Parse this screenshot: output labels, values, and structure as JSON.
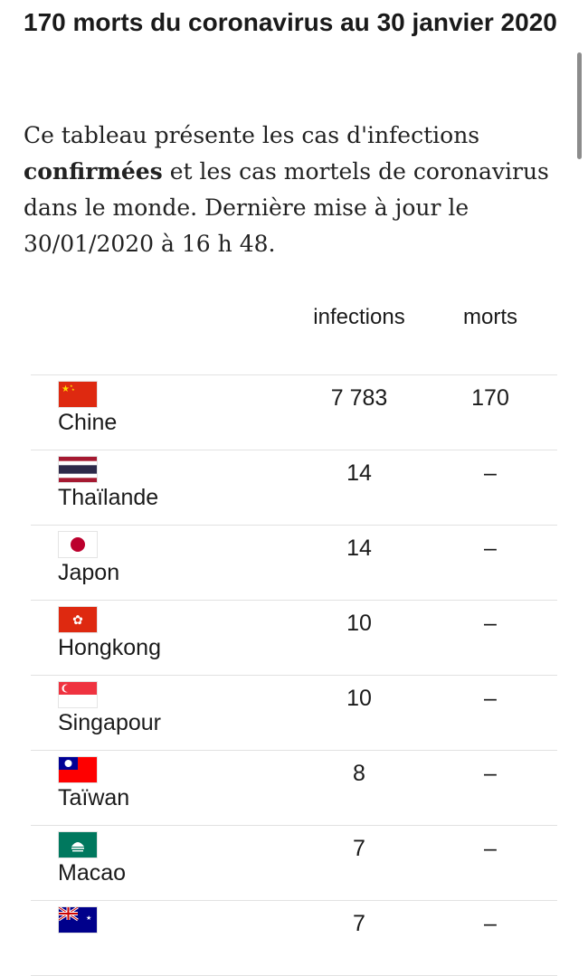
{
  "article": {
    "title": "170 morts du coronavirus au 30 janvier 2020",
    "intro_part1": "Ce tableau présente les cas d'infections ",
    "intro_bold": "confirmées",
    "intro_part2": " et les cas mortels de coronavirus dans le monde. Dernière mise à jour le 30/01/2020 à 16 h 48."
  },
  "table": {
    "headers": {
      "infections": "infections",
      "morts": "morts"
    },
    "rows": [
      {
        "country": "Chine",
        "flag": "china-flag-icon",
        "infections": "7 783",
        "morts": "170"
      },
      {
        "country": "Thaïlande",
        "flag": "thailand-flag-icon",
        "infections": "14",
        "morts": "–"
      },
      {
        "country": "Japon",
        "flag": "japan-flag-icon",
        "infections": "14",
        "morts": "–"
      },
      {
        "country": "Hongkong",
        "flag": "hongkong-flag-icon",
        "infections": "10",
        "morts": "–"
      },
      {
        "country": "Singapour",
        "flag": "singapore-flag-icon",
        "infections": "10",
        "morts": "–"
      },
      {
        "country": "Taïwan",
        "flag": "taiwan-flag-icon",
        "infections": "8",
        "morts": "–"
      },
      {
        "country": "Macao",
        "flag": "macao-flag-icon",
        "infections": "7",
        "morts": "–"
      },
      {
        "country": "",
        "flag": "australia-flag-icon",
        "infections": "7",
        "morts": "–"
      }
    ]
  },
  "colors": {
    "text": "#1a1a1a",
    "divider": "#e2e2e2",
    "red": "#de2910",
    "yellow": "#ffde00",
    "blue": "#2d2a4a",
    "taiwan_blue": "#000095",
    "macao_green": "#00785e",
    "australia_blue": "#00008b"
  }
}
